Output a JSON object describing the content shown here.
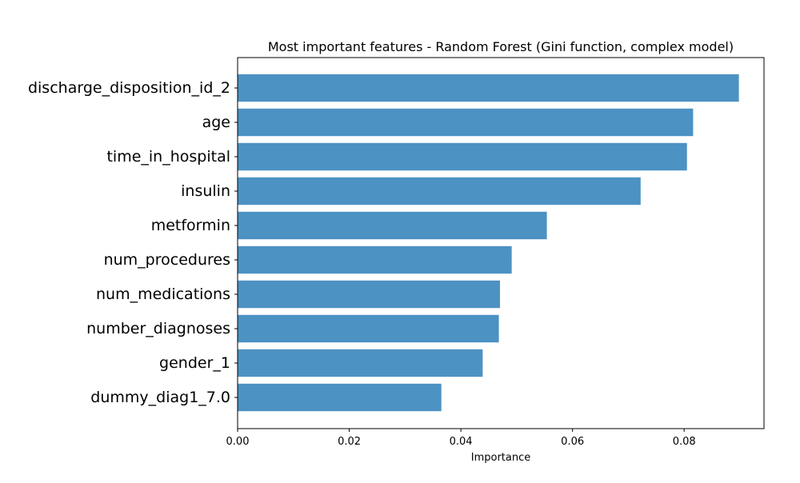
{
  "chart_data": {
    "type": "bar",
    "orientation": "horizontal",
    "title": "Most important features - Random Forest (Gini function, complex model)",
    "xlabel": "Importance",
    "ylabel": "",
    "xlim": [
      0.0,
      0.0943
    ],
    "x_ticks": [
      0.0,
      0.02,
      0.04,
      0.06,
      0.08
    ],
    "x_tick_labels": [
      "0.00",
      "0.02",
      "0.04",
      "0.06",
      "0.08"
    ],
    "categories": [
      "discharge_disposition_id_2",
      "age",
      "time_in_hospital",
      "insulin",
      "metformin",
      "num_procedures",
      "num_medications",
      "number_diagnoses",
      "gender_1",
      "dummy_diag1_7.0"
    ],
    "values": [
      0.0898,
      0.0816,
      0.0805,
      0.0722,
      0.0554,
      0.0491,
      0.047,
      0.0468,
      0.0439,
      0.0365
    ],
    "bar_color": "#4c92c3",
    "grid": false,
    "legend": "none"
  }
}
